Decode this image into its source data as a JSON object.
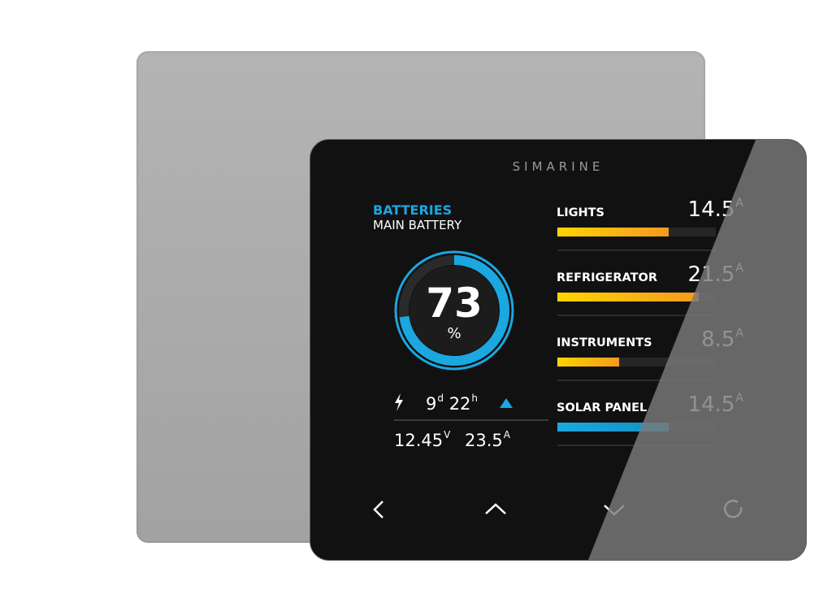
{
  "brand": "SIMARINE",
  "battery": {
    "category": "BATTERIES",
    "name": "MAIN BATTERY",
    "percent": 73,
    "percent_text": "73",
    "percent_unit": "%",
    "time_days": "9",
    "time_days_unit": "d",
    "time_hours": "22",
    "time_hours_unit": "h",
    "trend": "up",
    "voltage": "12.45",
    "voltage_unit": "V",
    "current": "23.5",
    "current_unit": "A"
  },
  "loads": [
    {
      "label": "LIGHTS",
      "value": "14.5",
      "unit": "A",
      "level": 0.7,
      "color": "orange"
    },
    {
      "label": "REFRIGERATOR",
      "value": "21.5",
      "unit": "A",
      "level": 0.89,
      "color": "orange"
    },
    {
      "label": "INSTRUMENTS",
      "value": "8.5",
      "unit": "A",
      "level": 0.39,
      "color": "orange"
    },
    {
      "label": "SOLAR PANEL",
      "value": "14.5",
      "unit": "A",
      "level": 0.7,
      "color": "blue"
    }
  ],
  "colors": {
    "accent": "#1ba7e0",
    "orange_start": "#ffd400",
    "orange_end": "#f39a1e"
  },
  "nav": [
    "chevron-left-icon",
    "chevron-up-icon",
    "chevron-down-icon",
    "circle-icon"
  ]
}
